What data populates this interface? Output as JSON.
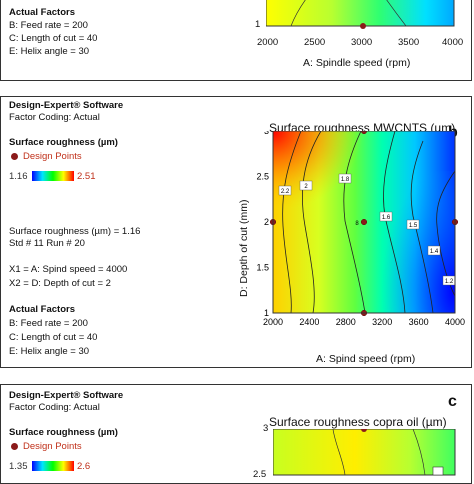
{
  "panel_a": {
    "actual_factors_title": "Actual Factors",
    "factors": [
      "B: Feed rate = 200",
      "C: Length of cut = 40",
      "E: Helix angle = 30"
    ],
    "x_ticks": [
      "2000",
      "2500",
      "3000",
      "3500",
      "4000"
    ],
    "y_tick": "1",
    "x_label": "A: Spindle speed (rpm)"
  },
  "panel_b": {
    "software": "Design-Expert® Software",
    "coding": "Factor Coding: Actual",
    "response_title": "Surface roughness (µm)",
    "design_points": "Design Points",
    "legend_min": "1.16",
    "legend_max": "2.51",
    "sr_value": "Surface roughness (µm) = 1.16",
    "std_run": "Std # 11 Run # 20",
    "x1": "X1 = A: Spind speed = 4000",
    "x2": "X2 = D: Depth of cut = 2",
    "actual_factors_title": "Actual Factors",
    "factors": [
      "B: Feed rate = 200",
      "C: Length of cut = 40",
      "E: Helix angle = 30"
    ],
    "letter": "b"
  },
  "panel_c": {
    "software": "Design-Expert® Software",
    "coding": "Factor Coding: Actual",
    "response_title": "Surface roughness (µm)",
    "design_points": "Design Points",
    "legend_min": "1.35",
    "legend_max": "2.6",
    "letter": "c",
    "chart_title": "Surface roughness copra oil (µm)",
    "y_ticks": [
      "3",
      "2.5"
    ]
  },
  "chart_data": [
    {
      "type": "contour",
      "title": "Surface roughness MWCNTS (µm)",
      "xlabel": "A: Spind speed (rpm)",
      "ylabel": "D: Depth of cut (mm)",
      "xlim": [
        2000,
        4000
      ],
      "ylim": [
        1,
        3
      ],
      "x_ticks": [
        "2000",
        "2400",
        "2800",
        "3200",
        "3600",
        "4000"
      ],
      "y_ticks": [
        "1",
        "1.5",
        "2",
        "2.5",
        "3"
      ],
      "contour_levels": [
        "2.2",
        "2",
        "1.8",
        "1.6",
        "1.5",
        "1.4",
        "1.2"
      ],
      "design_points": [
        {
          "x": 2000,
          "y": 2,
          "label": ""
        },
        {
          "x": 3000,
          "y": 3,
          "label": ""
        },
        {
          "x": 3000,
          "y": 2,
          "label": "8"
        },
        {
          "x": 3000,
          "y": 1,
          "label": ""
        },
        {
          "x": 4000,
          "y": 2,
          "label": ""
        }
      ],
      "colorscale": [
        "#0000ff",
        "#00e5ff",
        "#00ff00",
        "#ffff00",
        "#ff0000"
      ],
      "range": [
        1.16,
        2.51
      ]
    }
  ]
}
